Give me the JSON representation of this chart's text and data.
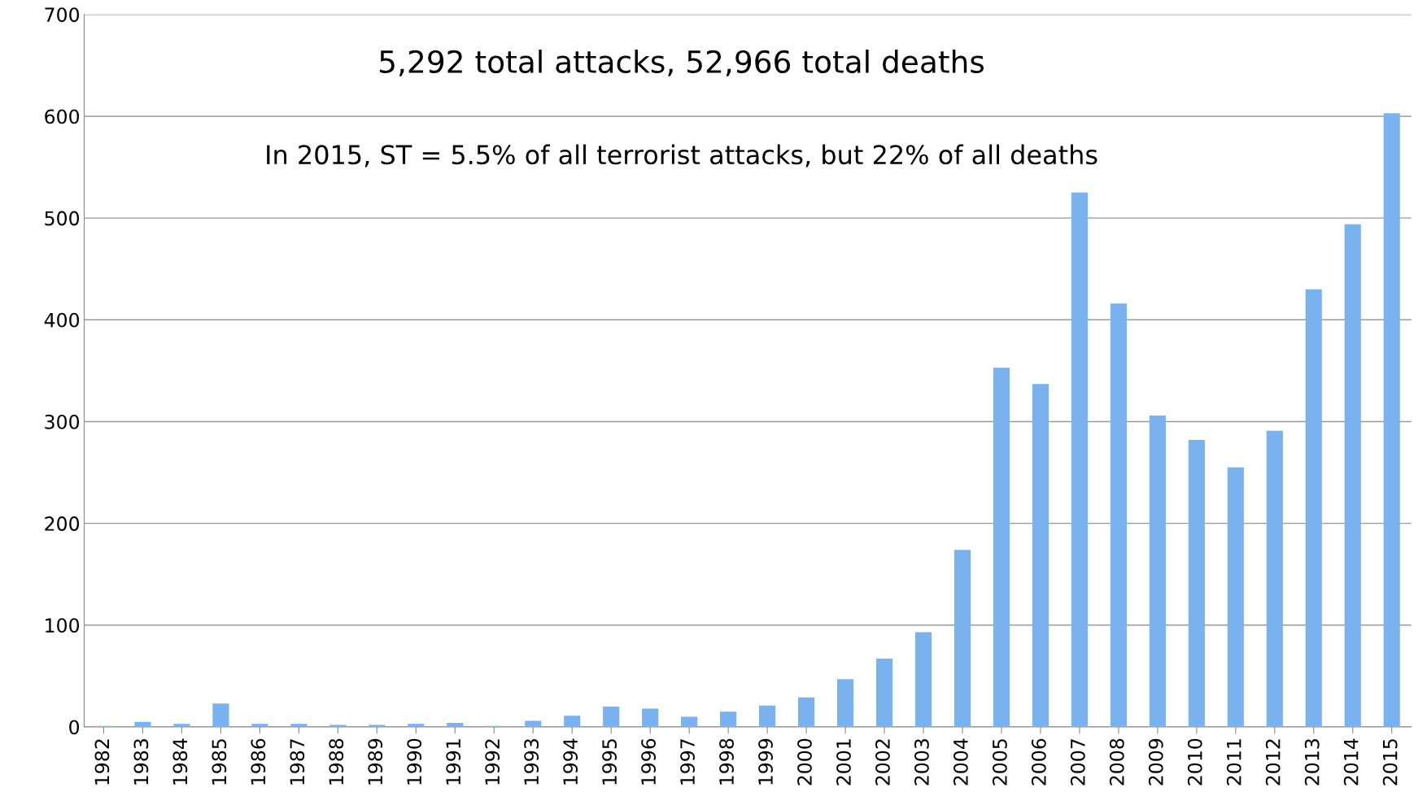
{
  "chart_data": {
    "type": "bar",
    "categories": [
      "1982",
      "1983",
      "1984",
      "1985",
      "1986",
      "1987",
      "1988",
      "1989",
      "1990",
      "1991",
      "1992",
      "1993",
      "1994",
      "1995",
      "1996",
      "1997",
      "1998",
      "1999",
      "2000",
      "2001",
      "2002",
      "2003",
      "2004",
      "2005",
      "2006",
      "2007",
      "2008",
      "2009",
      "2010",
      "2011",
      "2012",
      "2013",
      "2014",
      "2015"
    ],
    "values": [
      1,
      5,
      3,
      23,
      3,
      3,
      2,
      2,
      3,
      4,
      1,
      6,
      11,
      20,
      18,
      10,
      15,
      21,
      29,
      47,
      67,
      93,
      174,
      353,
      337,
      525,
      416,
      306,
      282,
      255,
      291,
      430,
      494,
      603
    ],
    "color": "#79b2ee",
    "ylim": [
      0,
      700
    ],
    "yticks": [
      0,
      100,
      200,
      300,
      400,
      500,
      600,
      700
    ],
    "grid": "y",
    "annotations": [
      "5,292 total attacks, 52,966 total deaths",
      "In 2015, ST = 5.5% of all terrorist attacks, but 22% of all deaths"
    ]
  }
}
